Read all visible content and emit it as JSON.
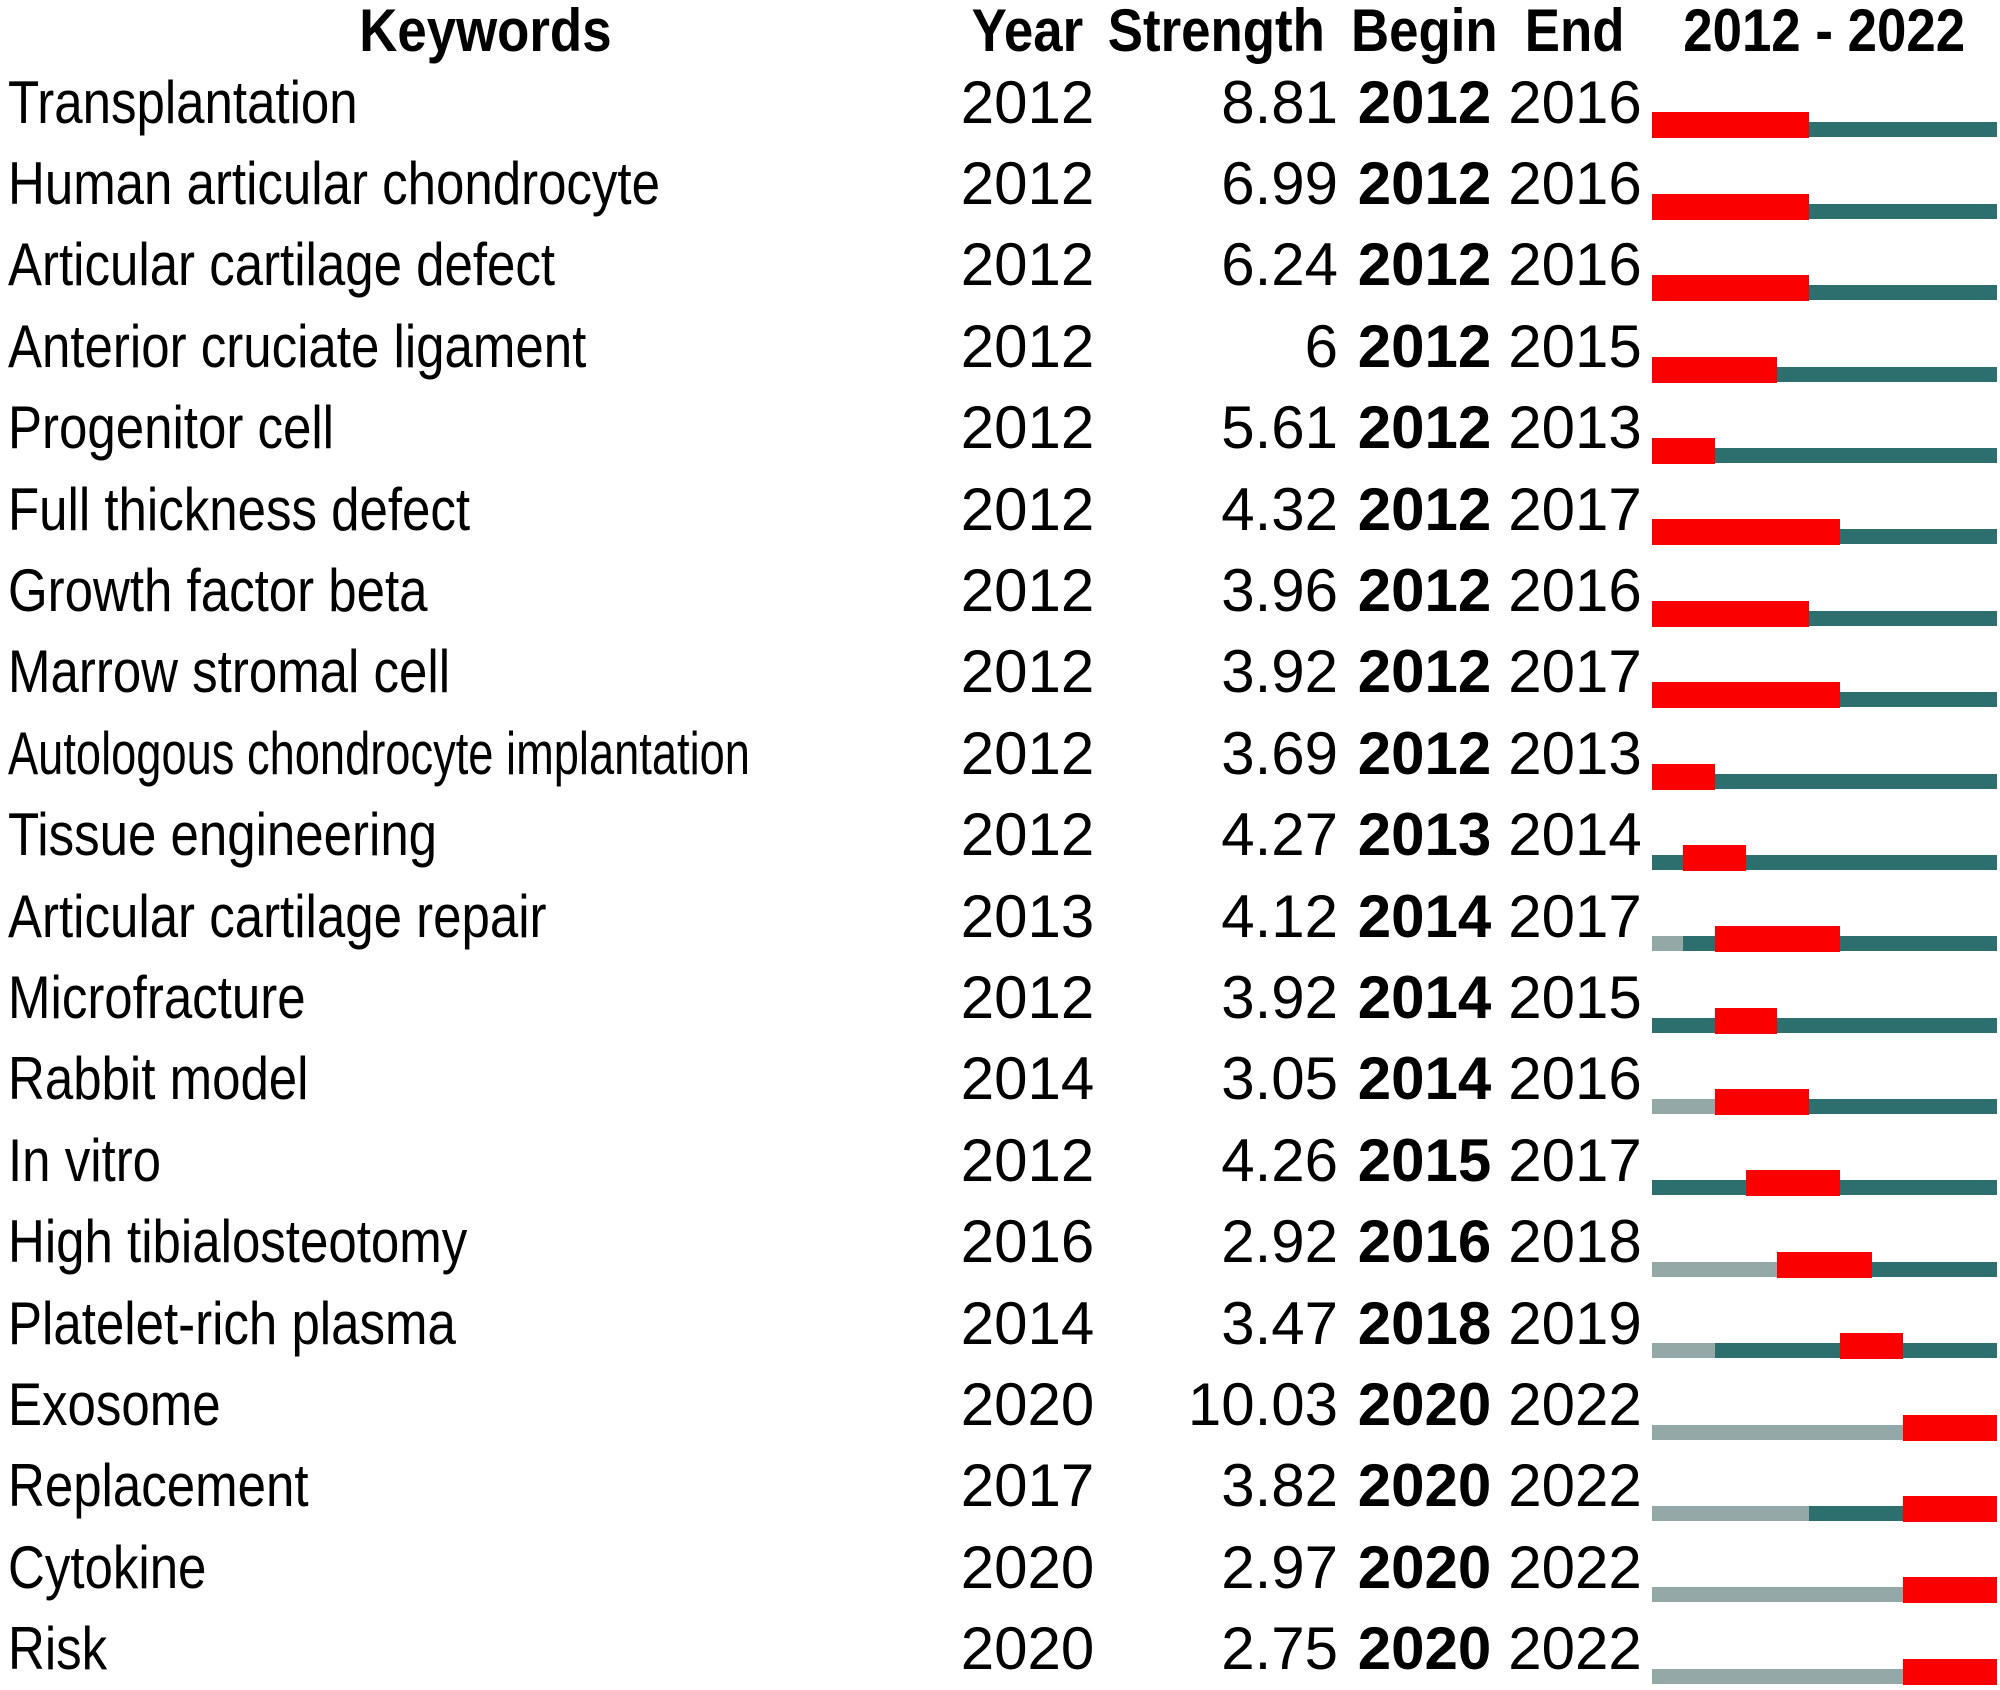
{
  "colors": {
    "burst_red": "#fa0000",
    "active_teal": "#2d6f6e",
    "inactive_gray": "#94a9a7"
  },
  "chart_data": {
    "type": "table",
    "columns": [
      "Keywords",
      "Year",
      "Strength",
      "Begin",
      "End",
      "2012 - 2022"
    ],
    "timeline": {
      "start": 2012,
      "end": 2022
    },
    "legend": {
      "burst_red": "burst interval (Begin–End)",
      "active_teal": "years keyword present outside burst",
      "inactive_gray": "years before keyword first appears"
    },
    "rows": [
      {
        "keyword": "Transplantation",
        "year": 2012,
        "strength": "8.81",
        "begin": 2012,
        "end": 2016
      },
      {
        "keyword": "Human articular chondrocyte",
        "year": 2012,
        "strength": "6.99",
        "begin": 2012,
        "end": 2016
      },
      {
        "keyword": "Articular cartilage defect",
        "year": 2012,
        "strength": "6.24",
        "begin": 2012,
        "end": 2016
      },
      {
        "keyword": "Anterior cruciate ligament",
        "year": 2012,
        "strength": "6",
        "begin": 2012,
        "end": 2015
      },
      {
        "keyword": "Progenitor cell",
        "year": 2012,
        "strength": "5.61",
        "begin": 2012,
        "end": 2013
      },
      {
        "keyword": "Full thickness defect",
        "year": 2012,
        "strength": "4.32",
        "begin": 2012,
        "end": 2017
      },
      {
        "keyword": "Growth factor beta",
        "year": 2012,
        "strength": "3.96",
        "begin": 2012,
        "end": 2016
      },
      {
        "keyword": "Marrow stromal cell",
        "year": 2012,
        "strength": "3.92",
        "begin": 2012,
        "end": 2017
      },
      {
        "keyword": "Autologous chondrocyte implantation",
        "year": 2012,
        "strength": "3.69",
        "begin": 2012,
        "end": 2013
      },
      {
        "keyword": "Tissue engineering",
        "year": 2012,
        "strength": "4.27",
        "begin": 2013,
        "end": 2014
      },
      {
        "keyword": "Articular cartilage repair",
        "year": 2013,
        "strength": "4.12",
        "begin": 2014,
        "end": 2017
      },
      {
        "keyword": "Microfracture",
        "year": 2012,
        "strength": "3.92",
        "begin": 2014,
        "end": 2015
      },
      {
        "keyword": "Rabbit model",
        "year": 2014,
        "strength": "3.05",
        "begin": 2014,
        "end": 2016
      },
      {
        "keyword": "In vitro",
        "year": 2012,
        "strength": "4.26",
        "begin": 2015,
        "end": 2017
      },
      {
        "keyword": "High tibialosteotomy",
        "year": 2016,
        "strength": "2.92",
        "begin": 2016,
        "end": 2018
      },
      {
        "keyword": "Platelet-rich plasma",
        "year": 2014,
        "strength": "3.47",
        "begin": 2018,
        "end": 2019
      },
      {
        "keyword": "Exosome",
        "year": 2020,
        "strength": "10.03",
        "begin": 2020,
        "end": 2022
      },
      {
        "keyword": "Replacement",
        "year": 2017,
        "strength": "3.82",
        "begin": 2020,
        "end": 2022
      },
      {
        "keyword": "Cytokine",
        "year": 2020,
        "strength": "2.97",
        "begin": 2020,
        "end": 2022
      },
      {
        "keyword": "Risk",
        "year": 2020,
        "strength": "2.75",
        "begin": 2020,
        "end": 2022
      }
    ]
  }
}
